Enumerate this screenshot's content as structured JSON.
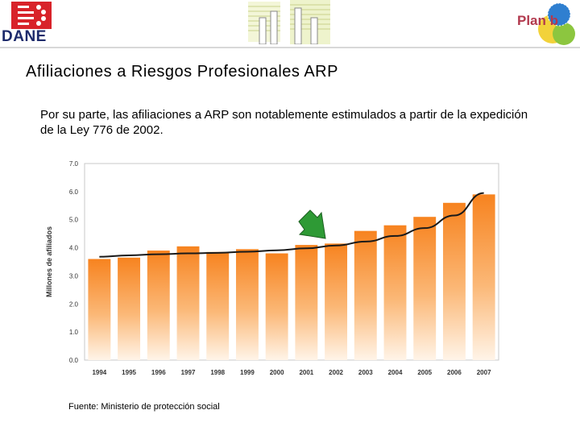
{
  "header": {
    "dane_logo_text": "DANE",
    "planb_logo_text": "Plan b"
  },
  "slide": {
    "title": "Afiliaciones a Riesgos Profesionales ARP",
    "body": "Por su parte, las afiliaciones a ARP son notablemente estimulados a partir de la expedición de la Ley 776 de 2002.",
    "source": "Fuente: Ministerio de protección social"
  },
  "colors": {
    "bar_top": "#f7831f",
    "bar_bottom": "#fff4e8",
    "trend_line": "#1a1a1a",
    "arrow_fill": "#2e9a35",
    "title_text": "#000000"
  },
  "chart_data": {
    "type": "bar",
    "ylabel": "Millones de afiliados",
    "ylim": [
      0,
      7
    ],
    "yticks": [
      "0.0",
      "1.0",
      "2.0",
      "3.0",
      "4.0",
      "5.0",
      "6.0",
      "7.0"
    ],
    "categories": [
      "1994",
      "1995",
      "1996",
      "1997",
      "1998",
      "1999",
      "2000",
      "2001",
      "2002",
      "2003",
      "2004",
      "2005",
      "2006",
      "2007"
    ],
    "values": [
      3.6,
      3.65,
      3.9,
      4.05,
      3.85,
      3.95,
      3.8,
      4.1,
      4.15,
      4.6,
      4.8,
      5.1,
      5.6,
      5.9
    ],
    "trend_line": [
      3.68,
      3.73,
      3.77,
      3.8,
      3.82,
      3.86,
      3.91,
      3.98,
      4.08,
      4.22,
      4.42,
      4.7,
      5.15,
      5.95
    ],
    "annotation": "arrow pointing to 2002 (Ley 776)",
    "grid": false,
    "legend": "none"
  }
}
